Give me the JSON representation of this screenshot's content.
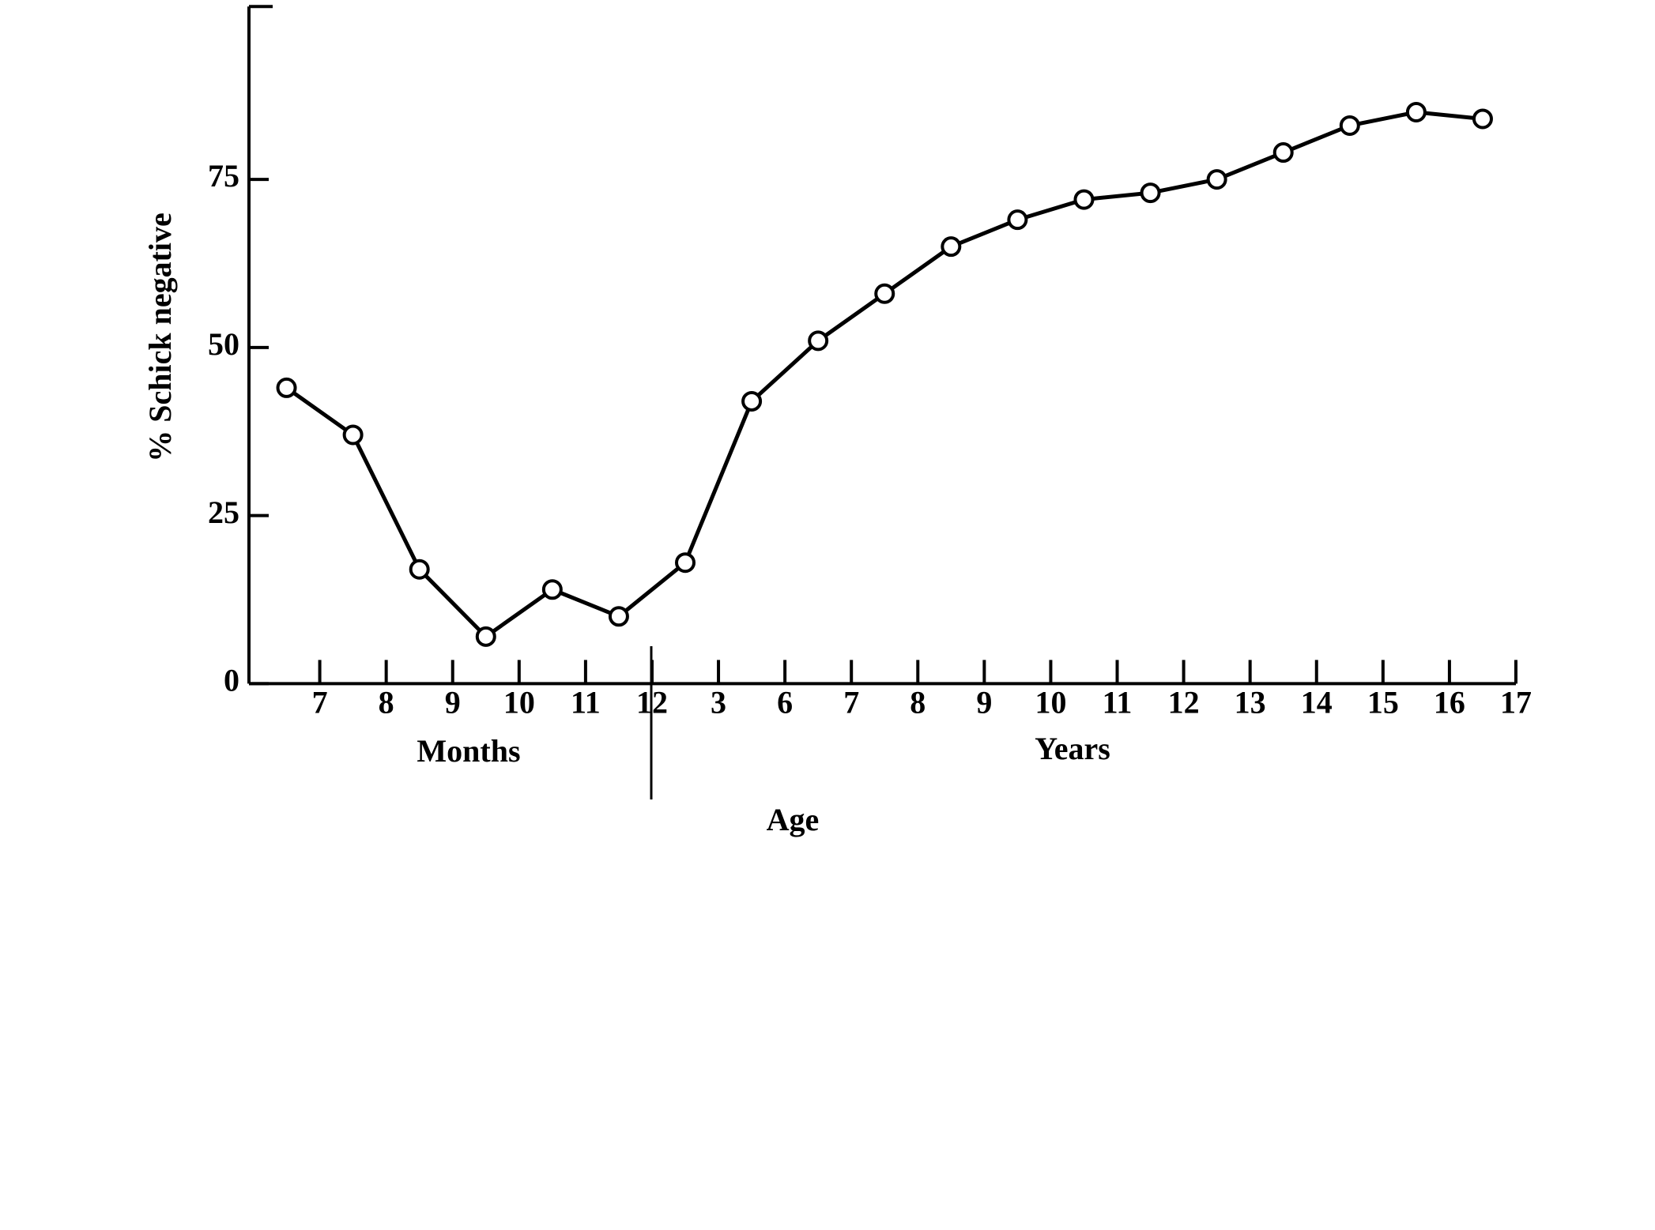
{
  "chart_data": {
    "type": "line",
    "ylabel": "% Schick negative",
    "xlabel": "Age",
    "annotations": [
      "Months",
      "Years"
    ],
    "x": [
      0.5,
      1.5,
      2.5,
      3.5,
      4.5,
      5.5,
      6.5,
      7.5,
      8.5,
      9.5,
      10.5,
      11.5,
      12.5,
      13.5,
      14.5,
      15.5,
      16.5,
      17.5,
      18.5
    ],
    "values": [
      44,
      37,
      17,
      7,
      14,
      10,
      18,
      42,
      51,
      58,
      65,
      69,
      72,
      73,
      75,
      79,
      83,
      85,
      84
    ],
    "color": "#000000",
    "xlim": [
      0,
      19
    ],
    "xticks": [
      {
        "value": 1,
        "label": "7"
      },
      {
        "value": 2,
        "label": "8"
      },
      {
        "value": 3,
        "label": "9"
      },
      {
        "value": 4,
        "label": "10"
      },
      {
        "value": 5,
        "label": "11"
      },
      {
        "value": 6,
        "label": "12"
      },
      {
        "value": 7,
        "label": "3"
      },
      {
        "value": 8,
        "label": "6"
      },
      {
        "value": 9,
        "label": "7"
      },
      {
        "value": 10,
        "label": "8"
      },
      {
        "value": 11,
        "label": "9"
      },
      {
        "value": 12,
        "label": "10"
      },
      {
        "value": 13,
        "label": "11"
      },
      {
        "value": 14,
        "label": "12"
      },
      {
        "value": 15,
        "label": "13"
      },
      {
        "value": 16,
        "label": "14"
      },
      {
        "value": 17,
        "label": "15"
      },
      {
        "value": 18,
        "label": "16"
      },
      {
        "value": 19,
        "label": "17"
      }
    ],
    "ylim": [
      0,
      100
    ],
    "yticks": [
      0,
      25,
      50,
      75
    ],
    "grid": false
  }
}
